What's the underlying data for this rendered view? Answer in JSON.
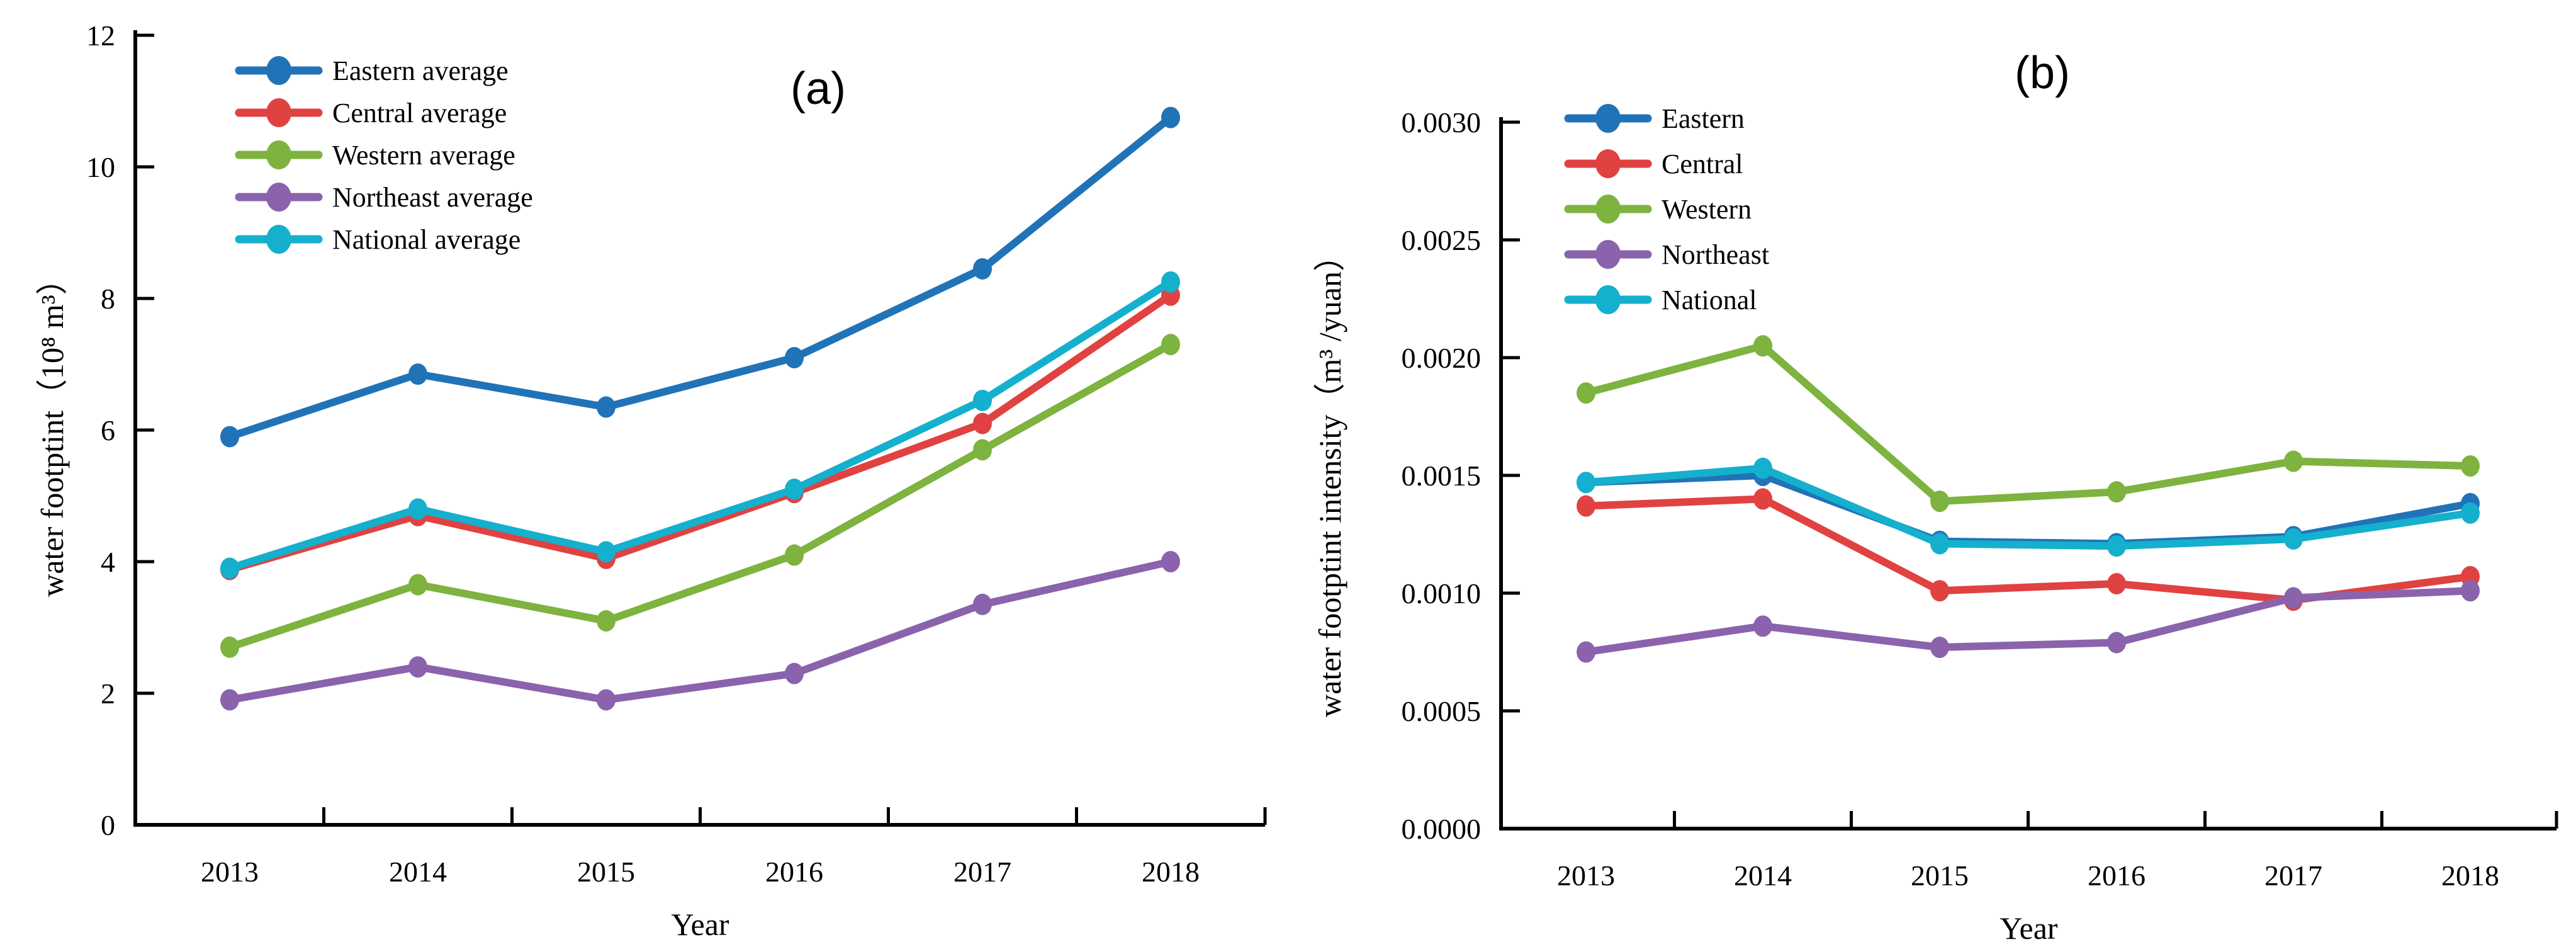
{
  "figure_title": "",
  "chart_data": [
    {
      "type": "line",
      "panel_label": "(a)",
      "xlabel": "Year",
      "ylabel": "water footptint（10⁸ m³）",
      "categories": [
        "2013",
        "2014",
        "2015",
        "2016",
        "2017",
        "2018"
      ],
      "ylim": [
        0,
        12
      ],
      "yticks": [
        {
          "value": 0,
          "label": "0"
        },
        {
          "value": 2,
          "label": "2"
        },
        {
          "value": 4,
          "label": "4"
        },
        {
          "value": 6,
          "label": "6"
        },
        {
          "value": 8,
          "label": "8"
        },
        {
          "value": 10,
          "label": "10"
        },
        {
          "value": 12,
          "label": "12"
        }
      ],
      "grid": false,
      "legend_position": "upper-left-inside",
      "series": [
        {
          "name": "Eastern average",
          "color": "#2173b8",
          "values": [
            5.9,
            6.85,
            6.35,
            7.1,
            8.45,
            10.75
          ]
        },
        {
          "name": "Central average",
          "color": "#e04241",
          "values": [
            3.88,
            4.7,
            4.05,
            5.05,
            6.1,
            8.05
          ]
        },
        {
          "name": "Western average",
          "color": "#7db33e",
          "values": [
            2.7,
            3.65,
            3.1,
            4.1,
            5.7,
            7.3
          ]
        },
        {
          "name": "Northeast average",
          "color": "#8a63ac",
          "values": [
            1.9,
            2.4,
            1.9,
            2.3,
            3.35,
            4.0
          ]
        },
        {
          "name": "National average",
          "color": "#14b0cd",
          "values": [
            3.9,
            4.8,
            4.15,
            5.1,
            6.45,
            8.25
          ]
        }
      ]
    },
    {
      "type": "line",
      "panel_label": "(b)",
      "xlabel": "Year",
      "ylabel": "water footptint intensity（m³ /yuan）",
      "categories": [
        "2013",
        "2014",
        "2015",
        "2016",
        "2017",
        "2018"
      ],
      "ylim": [
        0,
        0.003
      ],
      "yticks": [
        {
          "value": 0.0,
          "label": "0.0000"
        },
        {
          "value": 0.0005,
          "label": "0.0005"
        },
        {
          "value": 0.001,
          "label": "0.0010"
        },
        {
          "value": 0.0015,
          "label": "0.0015"
        },
        {
          "value": 0.002,
          "label": "0.0020"
        },
        {
          "value": 0.0025,
          "label": "0.0025"
        },
        {
          "value": 0.003,
          "label": "0.0030"
        }
      ],
      "grid": false,
      "legend_position": "upper-left-inside",
      "series": [
        {
          "name": "Eastern",
          "color": "#2173b8",
          "values": [
            0.00147,
            0.0015,
            0.00122,
            0.00121,
            0.00124,
            0.00138
          ]
        },
        {
          "name": "Central",
          "color": "#e04241",
          "values": [
            0.00137,
            0.0014,
            0.00101,
            0.00104,
            0.00097,
            0.00107
          ]
        },
        {
          "name": "Western",
          "color": "#7db33e",
          "values": [
            0.00185,
            0.00205,
            0.00139,
            0.00143,
            0.00156,
            0.00154
          ]
        },
        {
          "name": "Northeast",
          "color": "#8a63ac",
          "values": [
            0.00075,
            0.00086,
            0.00077,
            0.00079,
            0.00098,
            0.00101
          ]
        },
        {
          "name": "National",
          "color": "#14b0cd",
          "values": [
            0.00147,
            0.00153,
            0.00121,
            0.0012,
            0.00123,
            0.00134
          ]
        }
      ]
    }
  ]
}
